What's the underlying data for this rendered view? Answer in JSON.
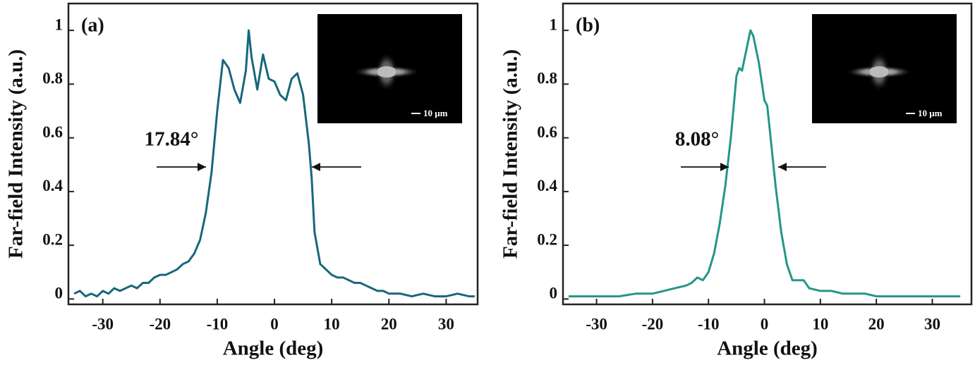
{
  "chart_data": [
    {
      "type": "line",
      "panel_label": "(a)",
      "annotation": "17.84°",
      "inset_label": "10 μm",
      "xlabel": "Angle (deg)",
      "ylabel": "Far-field Intensity (a.u.)",
      "xlim": [
        -36,
        35.5
      ],
      "ylim": [
        -0.02,
        1.1
      ],
      "xticks": [
        -30,
        -20,
        -10,
        0,
        10,
        20,
        30
      ],
      "yticks": [
        0,
        0.2,
        0.4,
        0.6,
        0.8,
        1
      ],
      "series": [
        {
          "name": "a",
          "color": "#17687a",
          "x": [
            -35,
            -34,
            -33,
            -32,
            -31,
            -30,
            -29,
            -28,
            -27,
            -26,
            -25,
            -24,
            -23,
            -22,
            -21,
            -20,
            -19,
            -18,
            -17,
            -16,
            -15,
            -14,
            -13,
            -12,
            -11,
            -10,
            -9,
            -8,
            -7,
            -6,
            -5,
            -4.5,
            -4,
            -3,
            -2,
            -1,
            0,
            1,
            2,
            3,
            4,
            5,
            6,
            6.5,
            7,
            8,
            9,
            10,
            11,
            12,
            13,
            14,
            15,
            16,
            17,
            18,
            19,
            20,
            22,
            24,
            26,
            28,
            30,
            32,
            34,
            35
          ],
          "values": [
            0.02,
            0.03,
            0.01,
            0.02,
            0.01,
            0.03,
            0.02,
            0.04,
            0.03,
            0.04,
            0.05,
            0.04,
            0.06,
            0.06,
            0.08,
            0.09,
            0.09,
            0.1,
            0.11,
            0.13,
            0.14,
            0.17,
            0.22,
            0.32,
            0.47,
            0.7,
            0.89,
            0.86,
            0.78,
            0.73,
            0.85,
            1.0,
            0.9,
            0.78,
            0.91,
            0.82,
            0.81,
            0.76,
            0.74,
            0.82,
            0.84,
            0.76,
            0.58,
            0.45,
            0.25,
            0.13,
            0.11,
            0.09,
            0.08,
            0.08,
            0.07,
            0.06,
            0.06,
            0.05,
            0.04,
            0.03,
            0.03,
            0.02,
            0.02,
            0.01,
            0.02,
            0.01,
            0.01,
            0.02,
            0.01,
            0.01
          ]
        }
      ]
    },
    {
      "type": "line",
      "panel_label": "(b)",
      "annotation": "8.08°",
      "inset_label": "10 μm",
      "xlabel": "Angle (deg)",
      "ylabel": "Far-field Intensity (a.u.)",
      "xlim": [
        -36,
        37
      ],
      "ylim": [
        -0.02,
        1.1
      ],
      "xticks": [
        -30,
        -20,
        -10,
        0,
        10,
        20,
        30
      ],
      "yticks": [
        0,
        0.2,
        0.4,
        0.6,
        0.8,
        1
      ],
      "series": [
        {
          "name": "b",
          "color": "#23968a",
          "x": [
            -35,
            -32,
            -29,
            -26,
            -23,
            -20,
            -18,
            -16,
            -14,
            -13,
            -12,
            -11,
            -10,
            -9,
            -8,
            -7,
            -6,
            -5,
            -4.5,
            -4,
            -3,
            -2.5,
            -2,
            -1,
            0,
            0.5,
            1,
            2,
            3,
            4,
            5,
            6,
            7,
            8,
            10,
            12,
            14,
            16,
            18,
            20,
            23,
            26,
            29,
            32,
            35
          ],
          "values": [
            0.01,
            0.01,
            0.01,
            0.01,
            0.02,
            0.02,
            0.03,
            0.04,
            0.05,
            0.06,
            0.08,
            0.07,
            0.1,
            0.17,
            0.28,
            0.42,
            0.6,
            0.83,
            0.86,
            0.85,
            0.95,
            1.0,
            0.98,
            0.88,
            0.74,
            0.72,
            0.62,
            0.42,
            0.25,
            0.13,
            0.07,
            0.07,
            0.07,
            0.04,
            0.03,
            0.03,
            0.02,
            0.02,
            0.02,
            0.01,
            0.01,
            0.01,
            0.01,
            0.01,
            0.01
          ]
        }
      ]
    }
  ]
}
